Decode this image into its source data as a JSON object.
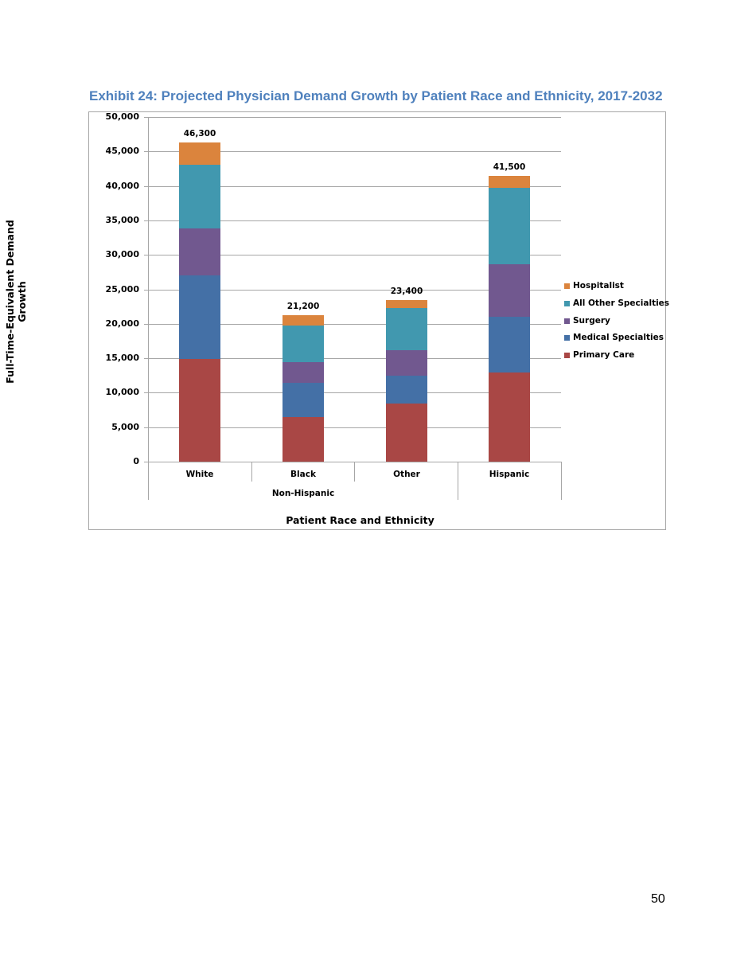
{
  "title": "Exhibit 24: Projected Physician Demand Growth by Patient Race and Ethnicity, 2017-2032",
  "page_number": "50",
  "chart_data": {
    "type": "bar",
    "stacked": true,
    "title": "Exhibit 24: Projected Physician Demand Growth by Patient Race and Ethnicity, 2017-2032",
    "xlabel": "Patient Race and Ethnicity",
    "ylabel": "Full-Time-Equivalent Demand Growth",
    "ylim": [
      0,
      50000
    ],
    "yticks": [
      "0",
      "5,000",
      "10,000",
      "15,000",
      "20,000",
      "25,000",
      "30,000",
      "35,000",
      "40,000",
      "45,000",
      "50,000"
    ],
    "categories": [
      "White",
      "Black",
      "Other",
      "Hispanic"
    ],
    "category_group": {
      "label": "Non-Hispanic",
      "members": [
        "White",
        "Black",
        "Other"
      ]
    },
    "series": [
      {
        "name": "Primary Care",
        "color": "#a94745",
        "values": [
          14900,
          6500,
          8400,
          12900
        ]
      },
      {
        "name": "Medical Specialties",
        "color": "#4470a6",
        "values": [
          12100,
          4900,
          4100,
          8100
        ]
      },
      {
        "name": "Surgery",
        "color": "#71588f",
        "values": [
          6800,
          3000,
          3700,
          7600
        ]
      },
      {
        "name": "All Other Specialties",
        "color": "#4198af",
        "values": [
          9300,
          5300,
          6100,
          11100
        ]
      },
      {
        "name": "Hospitalist",
        "color": "#db843d",
        "values": [
          3200,
          1500,
          1100,
          1800
        ]
      }
    ],
    "totals": [
      "46,300",
      "21,200",
      "23,400",
      "41,500"
    ],
    "legend": [
      "Hospitalist",
      "All Other Specialties",
      "Surgery",
      "Medical Specialties",
      "Primary Care"
    ],
    "legend_position": "right",
    "grid": true
  }
}
